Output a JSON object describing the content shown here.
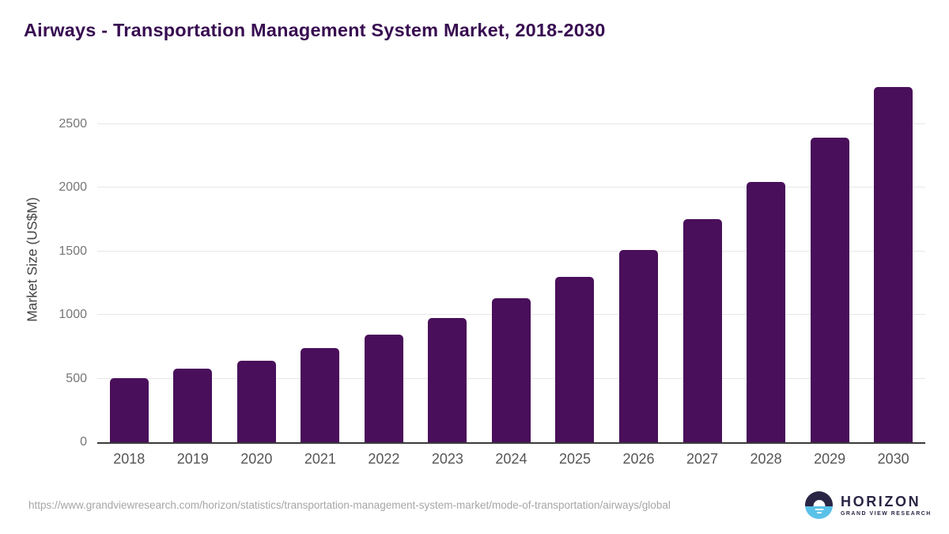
{
  "title": "Airways - Transportation Management System Market, 2018-2030",
  "chart_data": {
    "type": "bar",
    "title": "Airways - Transportation Management System Market, 2018-2030",
    "categories": [
      "2018",
      "2019",
      "2020",
      "2021",
      "2022",
      "2023",
      "2024",
      "2025",
      "2026",
      "2027",
      "2028",
      "2029",
      "2030"
    ],
    "values": [
      505,
      575,
      640,
      740,
      845,
      975,
      1130,
      1300,
      1510,
      1755,
      2045,
      2390,
      2790
    ],
    "xlabel": "",
    "ylabel": "Market Size (US$M)",
    "ylim": [
      0,
      2870
    ],
    "yticks": [
      0,
      500,
      1000,
      1500,
      2000,
      2500
    ],
    "grid": true,
    "legend": false,
    "bar_color": "#490f5a"
  },
  "colors": {
    "title_text": "#380d51",
    "bar": "#490f5a",
    "gridline": "#e7e7e7",
    "axis_line": "#3b3b3b",
    "y_tick_text": "#767676",
    "x_tick_text": "#565656",
    "url_text": "#a6a6a6",
    "logo_navy": "#2b2545",
    "logo_blue": "#5ac1e8"
  },
  "footer": {
    "source_url": "https://www.grandviewresearch.com/horizon/statistics/transportation-management-system-market/mode-of-transportation/airways/global",
    "logo": {
      "icon": "horizon-sun-circle-logo",
      "brand": "HORIZON",
      "sub_brand": "GRAND VIEW RESEARCH"
    }
  }
}
